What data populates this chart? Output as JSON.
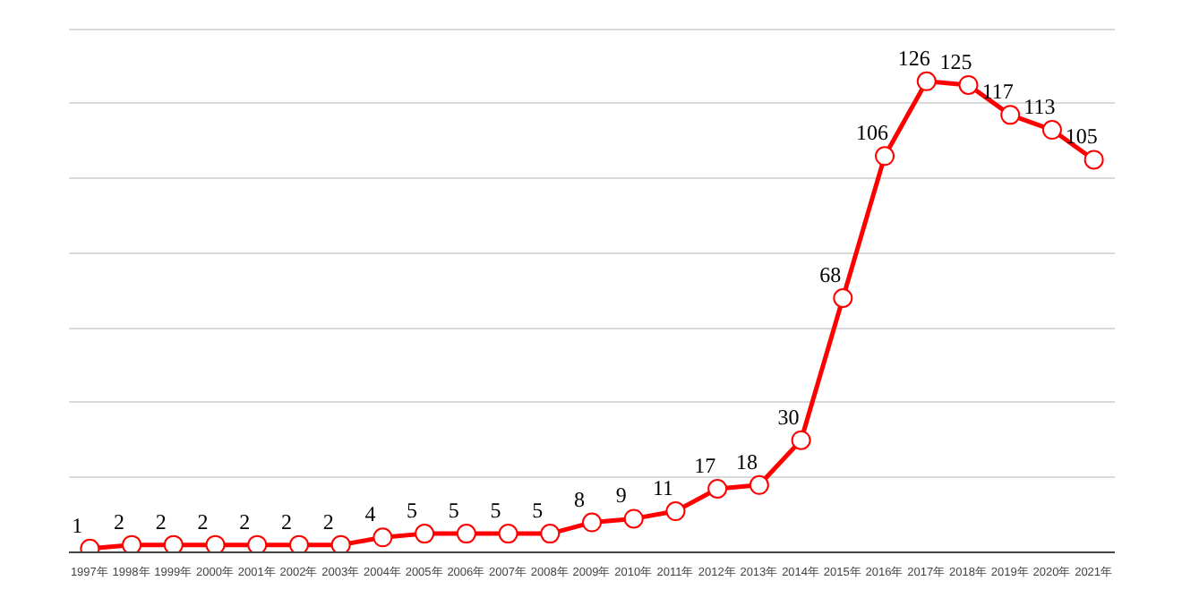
{
  "chart_data": {
    "type": "line",
    "categories": [
      "1997年",
      "1998年",
      "1999年",
      "2000年",
      "2001年",
      "2002年",
      "2003年",
      "2004年",
      "2005年",
      "2006年",
      "2007年",
      "2008年",
      "2009年",
      "2010年",
      "2011年",
      "2012年",
      "2013年",
      "2014年",
      "2015年",
      "2016年",
      "2017年",
      "2018年",
      "2019年",
      "2020年",
      "2021年"
    ],
    "series": [
      {
        "color": "#ff0000",
        "values": [
          1,
          2,
          2,
          2,
          2,
          2,
          2,
          4,
          5,
          5,
          5,
          5,
          8,
          9,
          11,
          17,
          18,
          30,
          68,
          106,
          126,
          125,
          117,
          113,
          105
        ]
      }
    ],
    "grid": "y",
    "marker": "circle",
    "line_style": "solid",
    "data_labels": true,
    "tick_labels": "x"
  }
}
